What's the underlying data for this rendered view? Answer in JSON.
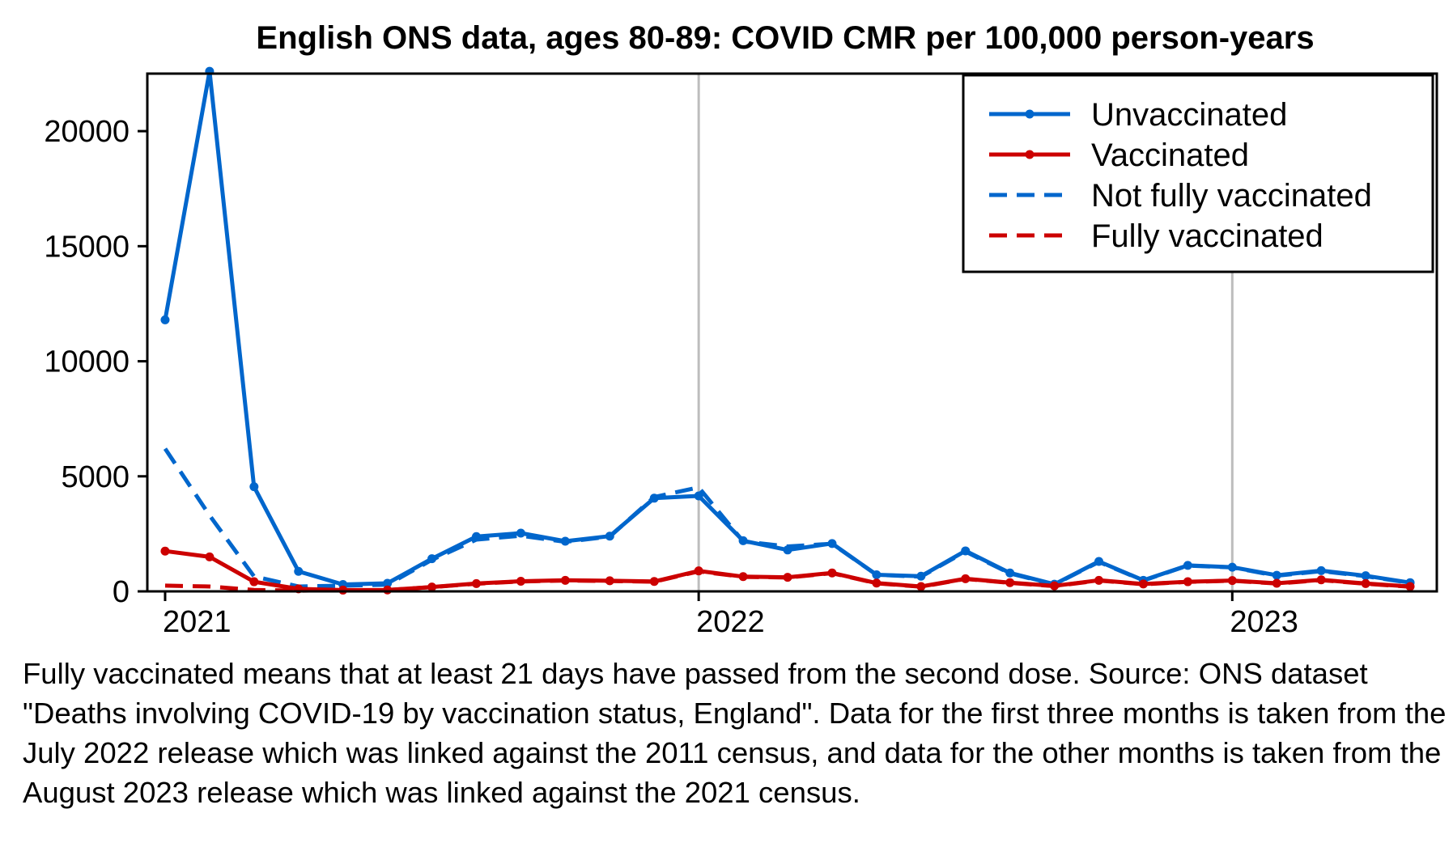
{
  "chart_data": {
    "type": "line",
    "title": "English ONS data, ages 80-89: COVID CMR per 100,000 person-years",
    "xlabel": "",
    "ylabel": "",
    "x_ticks": [
      "2021",
      "2022",
      "2023"
    ],
    "y_ticks": [
      "0",
      "5000",
      "10000",
      "15000",
      "20000"
    ],
    "ylim": [
      0,
      22500
    ],
    "x_index_range": [
      -0.4,
      28.6
    ],
    "year_gridlines_at_month_index": [
      12,
      24
    ],
    "months": [
      "2021-01",
      "2021-02",
      "2021-03",
      "2021-04",
      "2021-05",
      "2021-06",
      "2021-07",
      "2021-08",
      "2021-09",
      "2021-10",
      "2021-11",
      "2021-12",
      "2022-01",
      "2022-02",
      "2022-03",
      "2022-04",
      "2022-05",
      "2022-06",
      "2022-07",
      "2022-08",
      "2022-09",
      "2022-10",
      "2022-11",
      "2022-12",
      "2023-01",
      "2023-02",
      "2023-03",
      "2023-04",
      "2023-05"
    ],
    "legend_location": "top-right",
    "series": [
      {
        "name": "Unvaccinated",
        "color": "#0066cc",
        "style": "solid",
        "markers": true,
        "values": [
          11800,
          22600,
          4550,
          870,
          300,
          350,
          1420,
          2380,
          2530,
          2180,
          2400,
          4050,
          4150,
          2200,
          1800,
          2080,
          720,
          660,
          1760,
          800,
          310,
          1300,
          480,
          1130,
          1050,
          700,
          900,
          680,
          380
        ]
      },
      {
        "name": "Vaccinated",
        "color": "#cc0000",
        "style": "solid",
        "markers": true,
        "values": [
          1750,
          1500,
          420,
          110,
          55,
          60,
          190,
          340,
          440,
          480,
          460,
          430,
          890,
          640,
          610,
          800,
          360,
          210,
          550,
          380,
          240,
          480,
          320,
          420,
          470,
          350,
          500,
          340,
          210
        ]
      },
      {
        "name": "Not fully vaccinated",
        "color": "#0066cc",
        "style": "dashed",
        "markers": false,
        "values": [
          6200,
          3300,
          650,
          210,
          250,
          290,
          1370,
          2250,
          2420,
          2150,
          2380,
          4100,
          4520,
          2170,
          1950,
          2070,
          720,
          640,
          1730,
          780,
          300,
          1280,
          470,
          1120,
          1040,
          680,
          880,
          660,
          370
        ]
      },
      {
        "name": "Fully vaccinated",
        "color": "#cc0000",
        "style": "dashed",
        "markers": false,
        "values": [
          250,
          210,
          60,
          30,
          40,
          55,
          185,
          330,
          430,
          470,
          450,
          420,
          870,
          630,
          600,
          790,
          350,
          200,
          540,
          370,
          230,
          470,
          310,
          410,
          460,
          340,
          490,
          330,
          200
        ]
      }
    ]
  },
  "caption": "Fully vaccinated means that at least 21 days have passed from the second dose. Source: ONS dataset \"Deaths involving COVID-19 by vaccination status, England\". Data for the first three months is taken from the July 2022 release which was linked against the 2011 census, and data for the other months is taken from the August 2023 release which was linked against the 2021 census."
}
